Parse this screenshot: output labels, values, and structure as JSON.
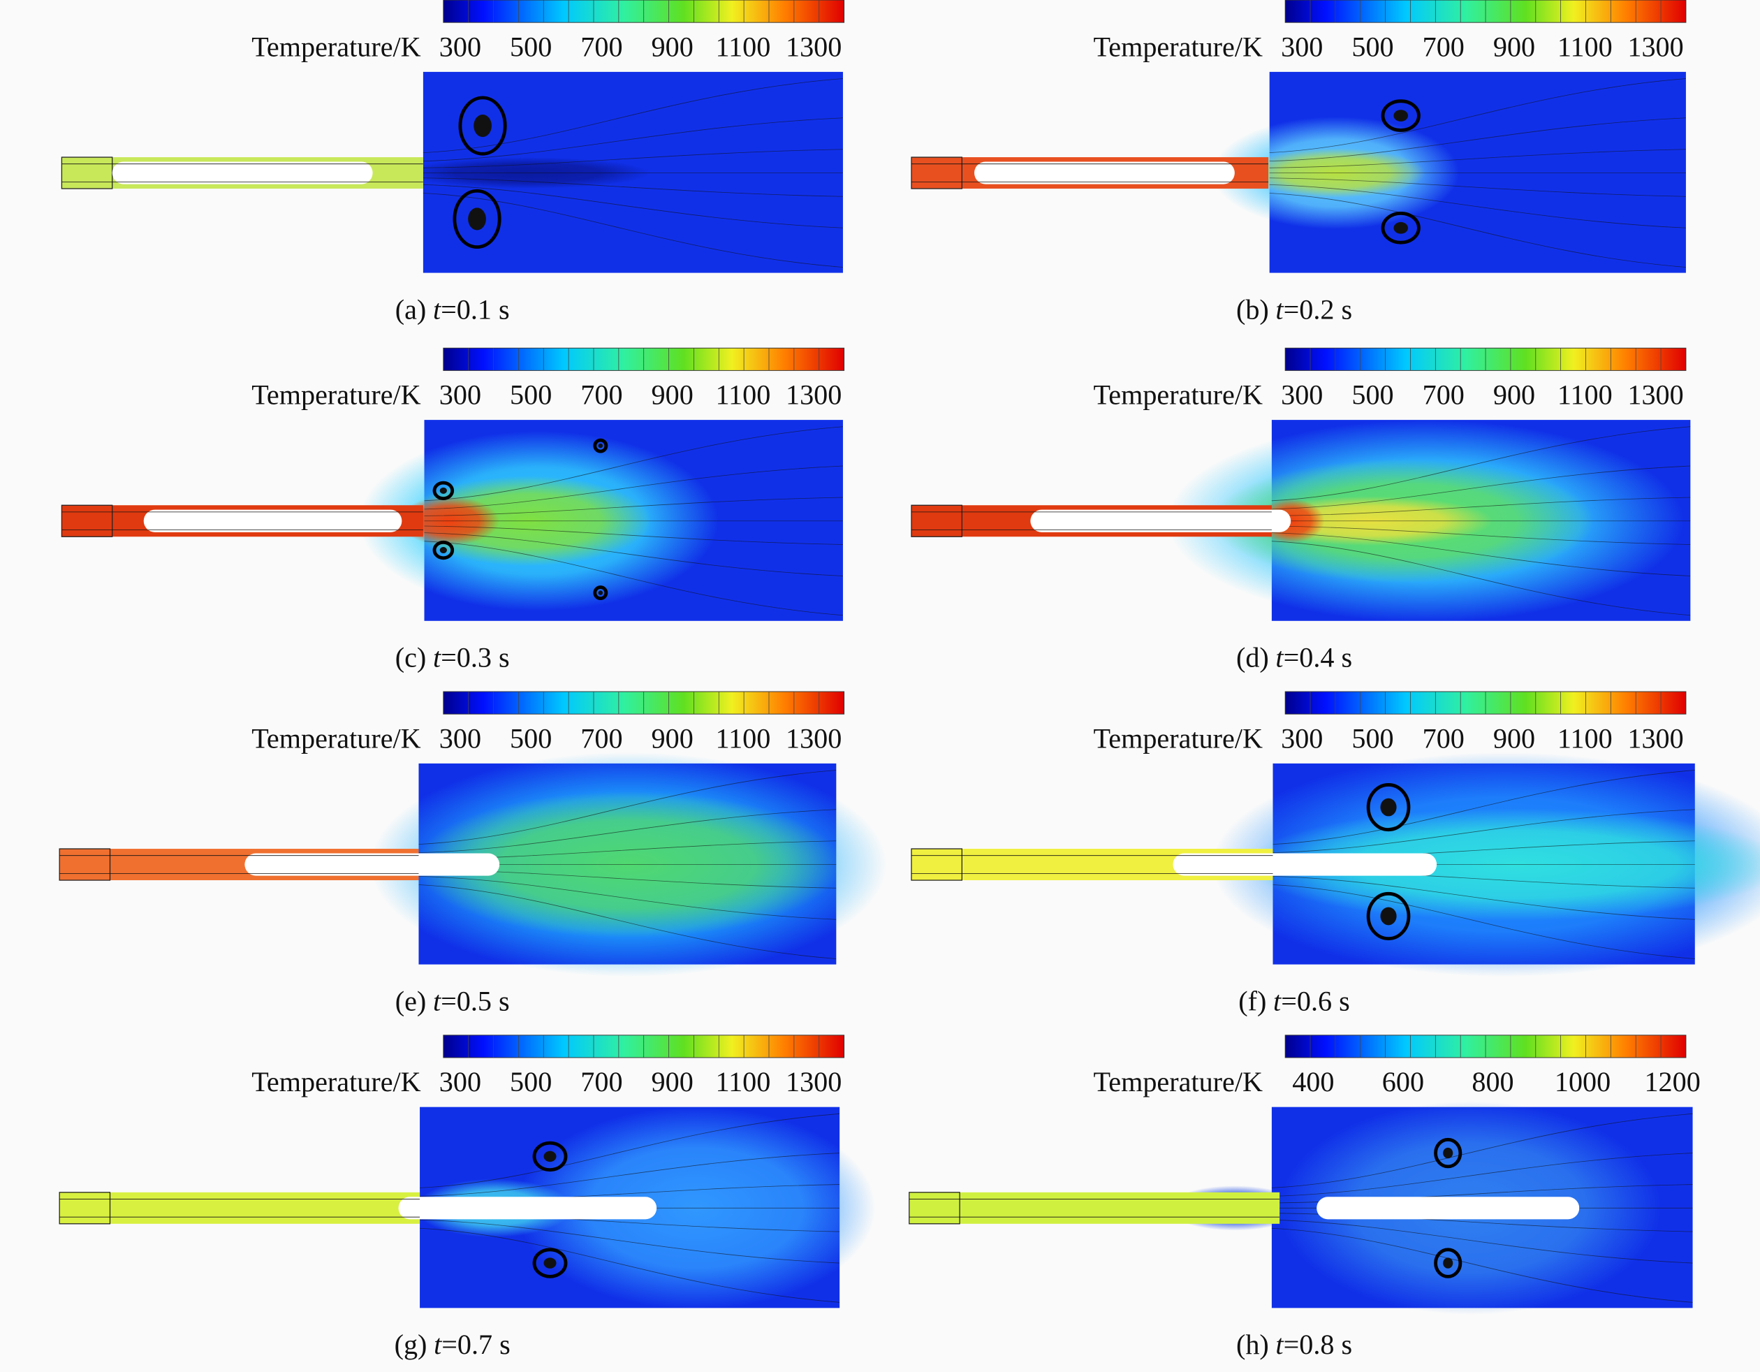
{
  "panels": [
    {
      "colorbar": {
        "label": "Temperature/K",
        "ticks": [
          "300",
          "500",
          "700",
          "900",
          "1100",
          "1300"
        ]
      },
      "caption": {
        "label": "(a)",
        "variable": "t",
        "text": "=0.1 s"
      }
    },
    {
      "colorbar": {
        "label": "Temperature/K",
        "ticks": [
          "300",
          "500",
          "700",
          "900",
          "1100",
          "1300"
        ]
      },
      "caption": {
        "label": "(b)",
        "variable": "t",
        "text": "=0.2 s"
      }
    },
    {
      "colorbar": {
        "label": "Temperature/K",
        "ticks": [
          "300",
          "500",
          "700",
          "900",
          "1100",
          "1300"
        ]
      },
      "caption": {
        "label": "(c)",
        "variable": "t",
        "text": "=0.3 s"
      }
    },
    {
      "colorbar": {
        "label": "Temperature/K",
        "ticks": [
          "300",
          "500",
          "700",
          "900",
          "1100",
          "1300"
        ]
      },
      "caption": {
        "label": "(d)",
        "variable": "t",
        "text": "=0.4 s"
      }
    },
    {
      "colorbar": {
        "label": "Temperature/K",
        "ticks": [
          "300",
          "500",
          "700",
          "900",
          "1100",
          "1300"
        ]
      },
      "caption": {
        "label": "(e)",
        "variable": "t",
        "text": "=0.5 s"
      }
    },
    {
      "colorbar": {
        "label": "Temperature/K",
        "ticks": [
          "300",
          "500",
          "700",
          "900",
          "1100",
          "1300"
        ]
      },
      "caption": {
        "label": "(f)",
        "variable": "t",
        "text": "=0.6 s"
      }
    },
    {
      "colorbar": {
        "label": "Temperature/K",
        "ticks": [
          "300",
          "500",
          "700",
          "900",
          "1100",
          "1300"
        ]
      },
      "caption": {
        "label": "(g)",
        "variable": "t",
        "text": "=0.7 s"
      }
    },
    {
      "colorbar": {
        "label": "Temperature/K",
        "ticks": [
          "400",
          "600",
          "800",
          "1000",
          "1200"
        ]
      },
      "caption": {
        "label": "(h)",
        "variable": "t",
        "text": "=0.8 s"
      }
    }
  ]
}
